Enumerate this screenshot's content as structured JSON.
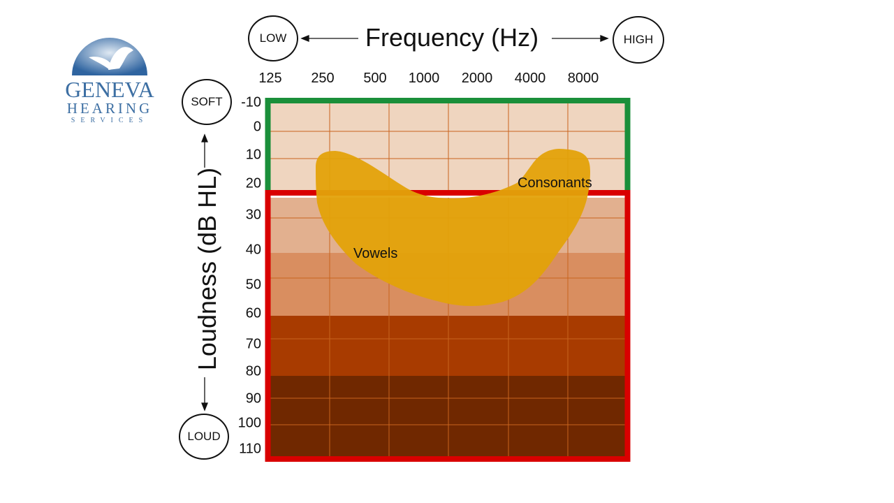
{
  "logo": {
    "line1": "GENEVA",
    "line2": "HEARING",
    "line3": "SERVICES",
    "brand_color": "#3d6fa3"
  },
  "header": {
    "title": "Frequency (Hz)",
    "low_label": "LOW",
    "high_label": "HIGH"
  },
  "side": {
    "title": "Loudness (dB HL)",
    "soft_label": "SOFT",
    "loud_label": "LOUD"
  },
  "chart_data": {
    "type": "area",
    "xlabel": "Frequency (Hz)",
    "ylabel": "Loudness (dB HL)",
    "x_ticks": [
      "125",
      "250",
      "500",
      "1000",
      "2000",
      "4000",
      "8000"
    ],
    "y_ticks": [
      "-10",
      "0",
      "10",
      "20",
      "30",
      "40",
      "50",
      "60",
      "70",
      "80",
      "90",
      "100",
      "110"
    ],
    "ylim": [
      -10,
      110
    ],
    "y_inverted": true,
    "grid": true,
    "zones": [
      {
        "range": [
          -10,
          20
        ],
        "fill": "#efd5bf",
        "border": "#1a8f3a"
      },
      {
        "range": [
          20,
          40
        ],
        "fill": "#e2b08f",
        "border": "#d90000"
      },
      {
        "range": [
          40,
          60
        ],
        "fill": "#d98e60",
        "border": "#d90000"
      },
      {
        "range": [
          60,
          80
        ],
        "fill": "#a83b00",
        "border": "#d90000"
      },
      {
        "range": [
          80,
          110
        ],
        "fill": "#702800",
        "border": "#d90000"
      }
    ],
    "speech_region": {
      "color": "#e3a20a",
      "labels": [
        "Vowels",
        "Consonants"
      ]
    }
  }
}
